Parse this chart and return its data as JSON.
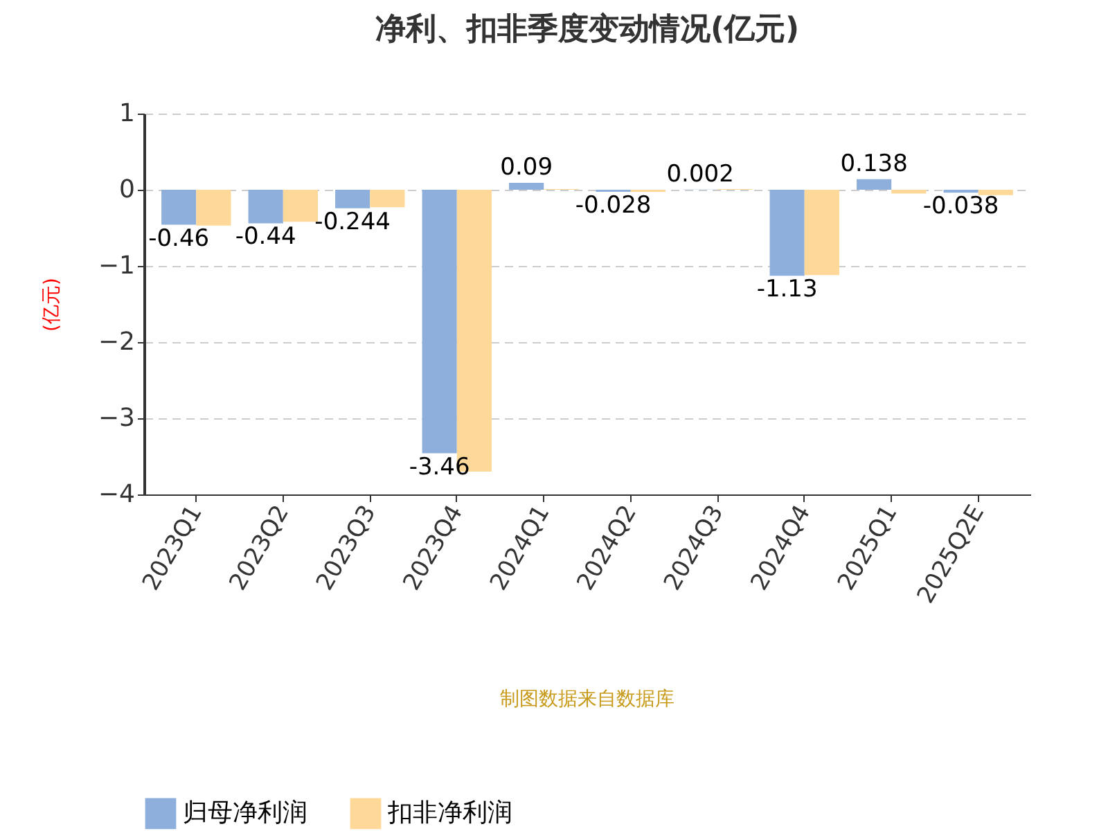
{
  "chart_data": {
    "type": "bar",
    "title": "净利、扣非季度变动情况(亿元)",
    "ylabel": "(亿元)",
    "categories": [
      "2023Q1",
      "2023Q2",
      "2023Q3",
      "2023Q4",
      "2024Q1",
      "2024Q2",
      "2024Q3",
      "2024Q4",
      "2025Q1",
      "2025Q2E"
    ],
    "series": [
      {
        "name": "归母净利润",
        "color": "#8eaedb",
        "values": [
          -0.46,
          -0.44,
          -0.244,
          -3.46,
          0.09,
          -0.028,
          0.002,
          -1.13,
          0.138,
          -0.038
        ],
        "value_labels": [
          "-0.46",
          "-0.44",
          "-0.244",
          "-3.46",
          "0.09",
          "-0.028",
          "0.002",
          "-1.13",
          "0.138",
          "-0.038"
        ]
      },
      {
        "name": "扣非净利润",
        "color": "#fed898",
        "values": [
          -0.47,
          -0.42,
          -0.23,
          -3.7,
          0.01,
          -0.03,
          0.01,
          -1.12,
          -0.05,
          -0.07
        ]
      }
    ],
    "ylim": [
      -4,
      1
    ],
    "yticks": [
      -4,
      -3,
      -2,
      -1,
      0,
      1
    ],
    "grid": "y",
    "legend": "bottom",
    "annotations": [
      "制图数据来自数据库"
    ]
  }
}
